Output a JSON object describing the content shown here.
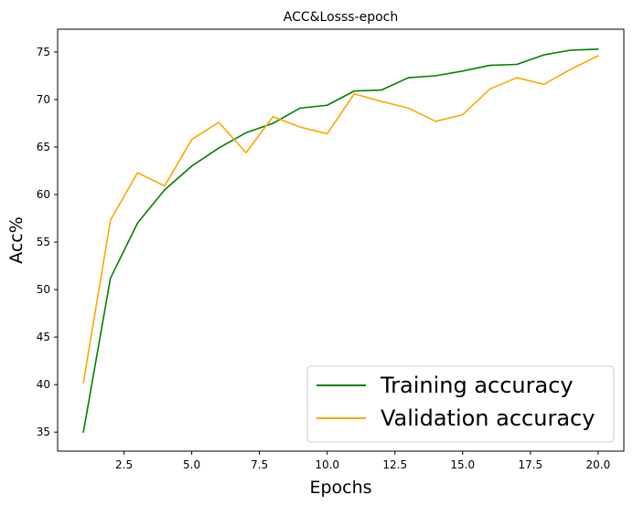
{
  "chart_data": {
    "type": "line",
    "title": "ACC&Losss-epoch",
    "xlabel": "Epochs",
    "ylabel": "Acc%",
    "xlim": [
      0.05,
      20.95
    ],
    "ylim": [
      33.0,
      77.4
    ],
    "x_ticks": [
      2.5,
      5.0,
      7.5,
      10.0,
      12.5,
      15.0,
      17.5,
      20.0
    ],
    "x_tick_labels": [
      "2.5",
      "5.0",
      "7.5",
      "10.0",
      "12.5",
      "15.0",
      "17.5",
      "20.0"
    ],
    "y_ticks": [
      35,
      40,
      45,
      50,
      55,
      60,
      65,
      70,
      75
    ],
    "y_tick_labels": [
      "35",
      "40",
      "45",
      "50",
      "55",
      "60",
      "65",
      "70",
      "75"
    ],
    "grid": false,
    "legend_position": "lower-right",
    "x": [
      1,
      2,
      3,
      4,
      5,
      6,
      7,
      8,
      9,
      10,
      11,
      12,
      13,
      14,
      15,
      16,
      17,
      18,
      19,
      20
    ],
    "series": [
      {
        "name": "Training accuracy",
        "color": "#008000",
        "values": [
          35.0,
          51.2,
          57.0,
          60.5,
          63.0,
          64.9,
          66.5,
          67.5,
          69.1,
          69.4,
          70.9,
          71.0,
          72.3,
          72.5,
          73.0,
          73.6,
          73.7,
          74.7,
          75.2,
          75.3
        ]
      },
      {
        "name": "Validation accuracy",
        "color": "#FFA500",
        "values": [
          40.2,
          57.3,
          62.3,
          60.9,
          65.8,
          67.6,
          64.4,
          68.2,
          67.1,
          66.4,
          70.6,
          69.8,
          69.1,
          67.7,
          68.4,
          71.1,
          72.3,
          71.6,
          73.2,
          74.6
        ]
      }
    ]
  }
}
